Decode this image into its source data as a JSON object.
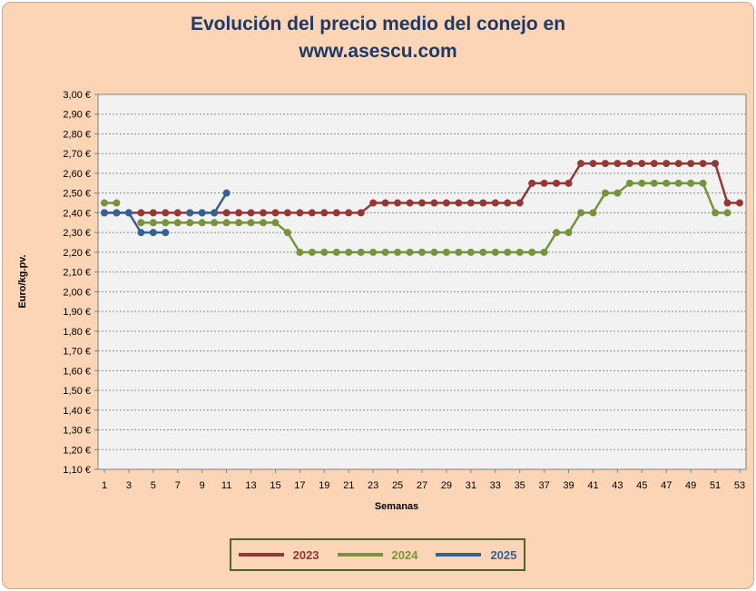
{
  "title_line1": "Evolución del precio medio del conejo en",
  "title_line2": "www.asescu.com",
  "chart_data": {
    "type": "line",
    "title": "Evolución del precio medio del conejo en www.asescu.com",
    "xlabel": "Semanas",
    "ylabel": "Euro/kg.pv.",
    "xlim": [
      1,
      53
    ],
    "ylim": [
      1.1,
      3.0
    ],
    "y_ticks": [
      "1,10 €",
      "1,20 €",
      "1,30 €",
      "1,40 €",
      "1,50 €",
      "1,60 €",
      "1,70 €",
      "1,80 €",
      "1,90 €",
      "2,00 €",
      "2,10 €",
      "2,20 €",
      "2,30 €",
      "2,40 €",
      "2,50 €",
      "2,60 €",
      "2,70 €",
      "2,80 €",
      "2,90 €",
      "3,00 €"
    ],
    "x_ticks": [
      "1",
      "3",
      "5",
      "7",
      "9",
      "11",
      "13",
      "15",
      "17",
      "19",
      "21",
      "23",
      "25",
      "27",
      "29",
      "31",
      "33",
      "35",
      "37",
      "39",
      "41",
      "43",
      "45",
      "47",
      "49",
      "51",
      "53"
    ],
    "grid": true,
    "legend_position": "bottom",
    "series": [
      {
        "name": "2023",
        "color": "#953735",
        "x": [
          1,
          2,
          3,
          4,
          5,
          6,
          7,
          8,
          9,
          10,
          11,
          12,
          13,
          14,
          15,
          16,
          17,
          18,
          19,
          20,
          21,
          22,
          23,
          24,
          25,
          26,
          27,
          28,
          29,
          30,
          31,
          32,
          33,
          34,
          35,
          36,
          37,
          38,
          39,
          40,
          41,
          42,
          43,
          44,
          45,
          46,
          47,
          48,
          49,
          50,
          51,
          52,
          53
        ],
        "values": [
          2.4,
          2.4,
          2.4,
          2.4,
          2.4,
          2.4,
          2.4,
          2.4,
          2.4,
          2.4,
          2.4,
          2.4,
          2.4,
          2.4,
          2.4,
          2.4,
          2.4,
          2.4,
          2.4,
          2.4,
          2.4,
          2.4,
          2.45,
          2.45,
          2.45,
          2.45,
          2.45,
          2.45,
          2.45,
          2.45,
          2.45,
          2.45,
          2.45,
          2.45,
          2.45,
          2.55,
          2.55,
          2.55,
          2.55,
          2.65,
          2.65,
          2.65,
          2.65,
          2.65,
          2.65,
          2.65,
          2.65,
          2.65,
          2.65,
          2.65,
          2.65,
          2.45,
          2.45
        ]
      },
      {
        "name": "2024",
        "color": "#77933c",
        "x": [
          1,
          2,
          3,
          4,
          5,
          6,
          7,
          8,
          9,
          10,
          11,
          12,
          13,
          14,
          15,
          16,
          17,
          18,
          19,
          20,
          21,
          22,
          23,
          24,
          25,
          26,
          27,
          28,
          29,
          30,
          31,
          32,
          33,
          34,
          35,
          36,
          37,
          38,
          39,
          40,
          41,
          42,
          43,
          44,
          45,
          46,
          47,
          48,
          49,
          50,
          51,
          52
        ],
        "values": [
          2.45,
          2.45,
          null,
          2.35,
          2.35,
          2.35,
          2.35,
          2.35,
          2.35,
          2.35,
          2.35,
          2.35,
          2.35,
          2.35,
          2.35,
          2.3,
          2.2,
          2.2,
          2.2,
          2.2,
          2.2,
          2.2,
          2.2,
          2.2,
          2.2,
          2.2,
          2.2,
          2.2,
          2.2,
          2.2,
          2.2,
          2.2,
          2.2,
          2.2,
          2.2,
          2.2,
          2.2,
          2.3,
          2.3,
          2.4,
          2.4,
          2.5,
          2.5,
          2.55,
          2.55,
          2.55,
          2.55,
          2.55,
          2.55,
          2.55,
          2.4,
          2.4
        ]
      },
      {
        "name": "2025",
        "color": "#376092",
        "x": [
          1,
          2,
          3,
          4,
          5,
          6,
          7,
          8,
          9,
          10,
          11
        ],
        "values": [
          2.4,
          2.4,
          2.4,
          2.3,
          2.3,
          2.3,
          null,
          2.4,
          2.4,
          2.4,
          2.5
        ]
      }
    ]
  }
}
